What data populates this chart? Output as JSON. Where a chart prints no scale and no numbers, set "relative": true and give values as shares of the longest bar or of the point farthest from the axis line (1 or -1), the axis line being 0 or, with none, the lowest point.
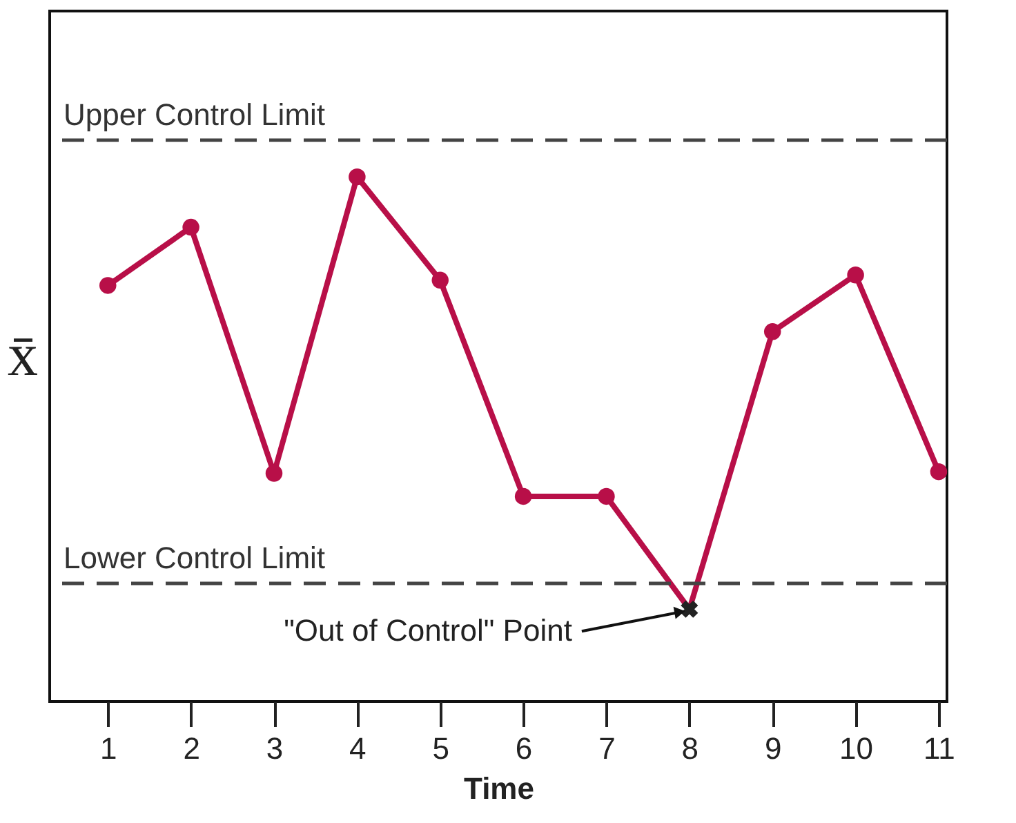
{
  "chart_data": {
    "type": "line",
    "xlabel": "Time",
    "ylabel": "x̄",
    "relative": true,
    "grid": false,
    "x": [
      1,
      2,
      3,
      4,
      5,
      6,
      7,
      8,
      9,
      10,
      11
    ],
    "xlim": [
      0.3,
      11.1
    ],
    "xticks": [
      1,
      2,
      3,
      4,
      5,
      6,
      7,
      8,
      9,
      10,
      11
    ],
    "series": [
      {
        "type": "line",
        "marker": "none",
        "line_style": "solid",
        "color": "#b80f48",
        "values": [
          0.793,
          0.904,
          0.435,
          1,
          0.803,
          0.391,
          0.391,
          0.176,
          0.705,
          0.813,
          0.438
        ]
      },
      {
        "type": "scatter",
        "marker": "circle",
        "color": "#b80f48",
        "values": [
          0.793,
          0.904,
          0.435,
          1,
          0.803,
          0.391,
          0.391,
          null,
          0.705,
          0.813,
          0.438
        ]
      },
      {
        "type": "scatter",
        "marker": "cross",
        "color": "#222222",
        "x": [
          8
        ],
        "values": [
          0.176
        ]
      }
    ],
    "ref_lines": [
      {
        "axis": "y",
        "value": 1.07,
        "label": "Upper Control Limit",
        "color": "#444444",
        "line_style": "dashed"
      },
      {
        "axis": "y",
        "value": 0.225,
        "label": "Lower Control Limit",
        "color": "#444444",
        "line_style": "dashed"
      }
    ],
    "annotations": [
      {
        "text": "\"Out of Control\" Point",
        "x": 8,
        "y": 0.176
      }
    ]
  }
}
